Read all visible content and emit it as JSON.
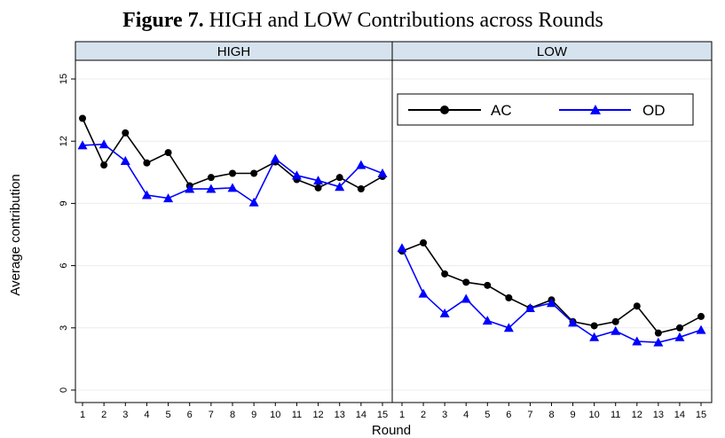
{
  "figure": {
    "title_bold": "Figure 7.",
    "title_rest": " HIGH and LOW Contributions across Rounds"
  },
  "chart_data": {
    "type": "line",
    "panels": [
      {
        "label": "HIGH",
        "x": [
          1,
          2,
          3,
          4,
          5,
          6,
          7,
          8,
          9,
          10,
          11,
          12,
          13,
          14,
          15
        ],
        "series": [
          {
            "name": "AC",
            "values": [
              13.1,
              10.85,
              12.4,
              10.95,
              11.45,
              9.85,
              10.25,
              10.45,
              10.45,
              11.0,
              10.15,
              9.75,
              10.25,
              9.7,
              10.3
            ]
          },
          {
            "name": "OD",
            "values": [
              11.8,
              11.85,
              11.05,
              9.4,
              9.25,
              9.7,
              9.7,
              9.75,
              9.05,
              11.15,
              10.35,
              10.1,
              9.8,
              10.85,
              10.45
            ]
          }
        ]
      },
      {
        "label": "LOW",
        "x": [
          1,
          2,
          3,
          4,
          5,
          6,
          7,
          8,
          9,
          10,
          11,
          12,
          13,
          14,
          15
        ],
        "series": [
          {
            "name": "AC",
            "values": [
              6.7,
              7.1,
              5.6,
              5.2,
              5.05,
              4.45,
              3.95,
              4.35,
              3.3,
              3.1,
              3.3,
              4.05,
              2.75,
              3.0,
              3.55
            ]
          },
          {
            "name": "OD",
            "values": [
              6.85,
              4.65,
              3.7,
              4.4,
              3.35,
              3.0,
              3.95,
              4.2,
              3.25,
              2.55,
              2.85,
              2.35,
              2.3,
              2.55,
              2.9
            ]
          }
        ]
      }
    ],
    "xticks": [
      "1",
      "2",
      "3",
      "4",
      "5",
      "6",
      "7",
      "8",
      "9",
      "10",
      "11",
      "12",
      "13",
      "14",
      "15"
    ],
    "yticks": [
      0,
      3,
      6,
      9,
      12,
      15
    ],
    "ylim": [
      -0.6,
      15.9
    ],
    "xlabel": "Round",
    "ylabel": "Average contribution",
    "legend": {
      "placement": "top-right of LOW panel",
      "entries": [
        "AC",
        "OD"
      ]
    },
    "grid": true,
    "colors": {
      "AC": "#000000",
      "OD": "#0000ff",
      "strip": "#d6e3ee",
      "grid": "#ececec"
    }
  }
}
